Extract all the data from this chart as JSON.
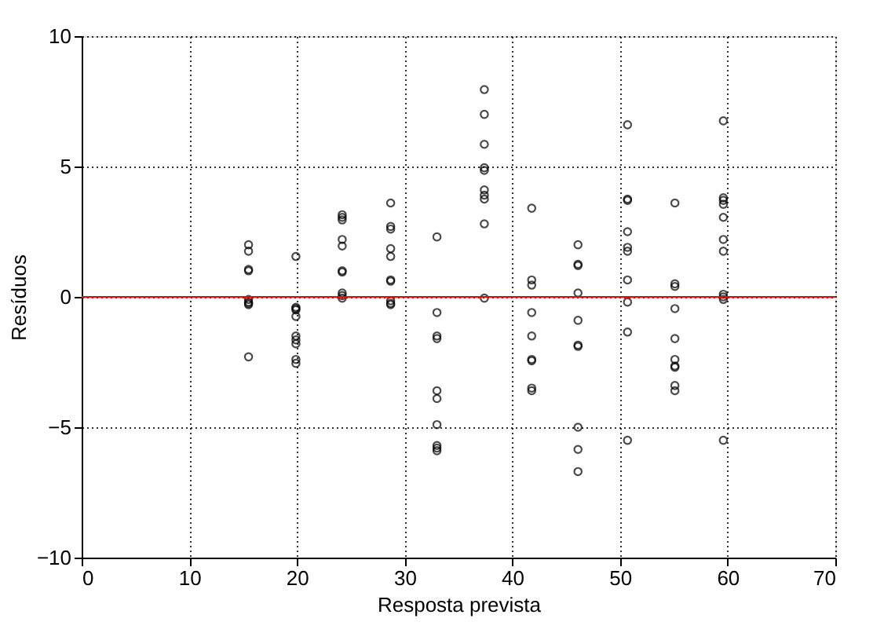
{
  "chart_data": {
    "type": "scatter",
    "xlabel": "Resposta prevista",
    "ylabel": "Resíduos",
    "x": [
      15.5,
      15.5,
      15.5,
      15.5,
      15.5,
      15.5,
      15.5,
      15.5,
      15.5,
      19.9,
      19.9,
      19.9,
      19.9,
      19.9,
      19.9,
      19.9,
      19.9,
      19.9,
      19.9,
      24.2,
      24.2,
      24.2,
      24.2,
      24.2,
      24.2,
      24.2,
      24.2,
      24.2,
      24.2,
      28.7,
      28.7,
      28.7,
      28.7,
      28.7,
      28.7,
      28.7,
      28.7,
      28.7,
      28.7,
      33,
      33,
      33,
      33,
      33,
      33,
      33,
      33,
      33,
      33,
      37.4,
      37.4,
      37.4,
      37.4,
      37.4,
      37.4,
      37.4,
      37.4,
      37.4,
      37.4,
      41.8,
      41.8,
      41.8,
      41.8,
      41.8,
      41.8,
      41.8,
      41.8,
      41.8,
      46.1,
      46.1,
      46.1,
      46.1,
      46.1,
      46.1,
      46.1,
      46.1,
      46.1,
      46.1,
      50.7,
      50.7,
      50.7,
      50.7,
      50.7,
      50.7,
      50.7,
      50.7,
      50.7,
      50.7,
      55.1,
      55.1,
      55.1,
      55.1,
      55.1,
      55.1,
      55.1,
      55.1,
      55.1,
      55.1,
      59.6,
      59.6,
      59.6,
      59.6,
      59.6,
      59.6,
      59.6,
      59.6,
      59.6,
      59.6,
      59.6
    ],
    "series": [
      {
        "color": "#000000",
        "values": [
          2.0,
          1.75,
          1.05,
          1.0,
          -0.1,
          -0.2,
          -0.25,
          -0.3,
          -2.3,
          1.55,
          -0.4,
          -0.45,
          -0.5,
          -0.75,
          -1.5,
          -1.65,
          -1.8,
          -2.4,
          -2.55,
          3.15,
          3.05,
          2.95,
          2.2,
          1.95,
          1.0,
          0.95,
          0.15,
          0.05,
          -0.05,
          3.6,
          2.7,
          2.6,
          1.85,
          1.55,
          0.65,
          0.6,
          -0.15,
          -0.25,
          -0.3,
          2.3,
          -0.6,
          -1.5,
          -1.6,
          -3.6,
          -3.9,
          -4.9,
          -5.7,
          -5.8,
          -5.9,
          7.95,
          7.0,
          5.85,
          4.95,
          4.85,
          4.1,
          3.9,
          3.75,
          2.8,
          -0.05,
          3.4,
          0.65,
          0.45,
          -0.6,
          -1.5,
          -2.4,
          -2.45,
          -3.6,
          -3.5,
          2.0,
          1.25,
          1.2,
          0.15,
          -0.9,
          -1.85,
          -1.9,
          -5.0,
          -5.85,
          -6.7,
          6.6,
          3.75,
          3.7,
          2.5,
          1.9,
          1.75,
          0.65,
          -0.2,
          -1.35,
          -5.5,
          3.6,
          0.5,
          0.4,
          -0.45,
          -1.6,
          -2.4,
          -2.65,
          -2.7,
          -3.4,
          -3.6,
          6.75,
          3.8,
          3.7,
          3.55,
          3.05,
          2.2,
          1.75,
          0.1,
          0.0,
          -0.1,
          -5.5
        ]
      }
    ],
    "xlim": [
      0,
      70
    ],
    "xticks": [
      0,
      10,
      20,
      30,
      40,
      50,
      60,
      70
    ],
    "ylim": [
      -10,
      10
    ],
    "yticks": [
      {
        "value": -10,
        "label": "−10"
      },
      {
        "value": -5,
        "label": "−5"
      },
      0,
      5,
      10
    ],
    "grid": true,
    "marker": "circle",
    "ref_lines": [
      {
        "axis": "y",
        "value": 0,
        "color": "#ff0000",
        "line_style": "solid"
      }
    ]
  }
}
